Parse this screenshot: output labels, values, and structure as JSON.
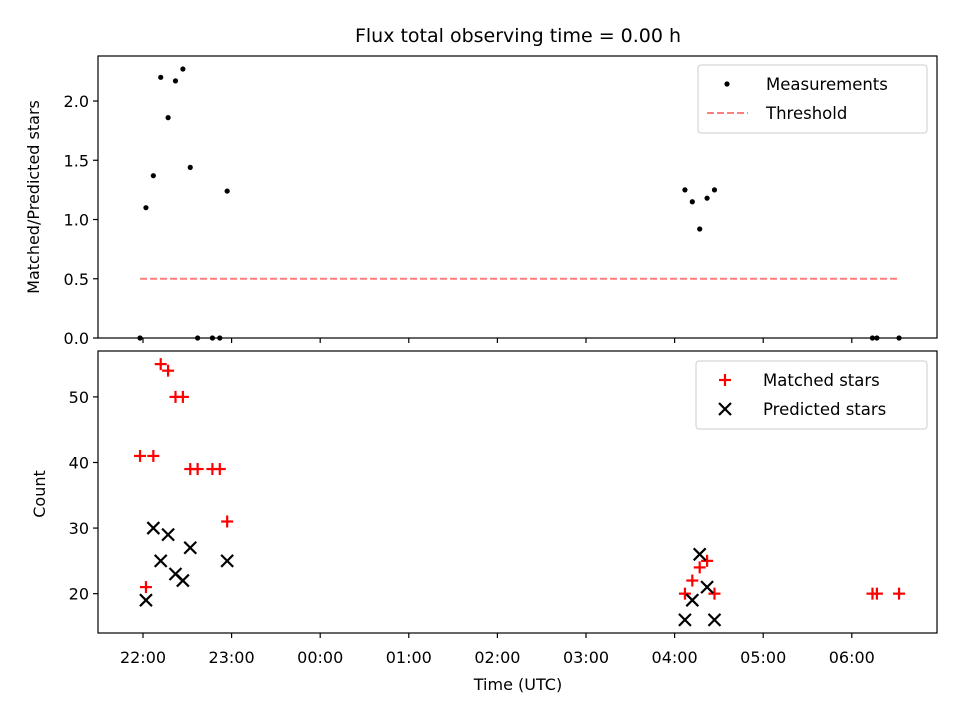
{
  "chart_data": [
    {
      "type": "scatter",
      "title": "Flux total observing time = 0.00 h",
      "xlabel": "",
      "ylabel": "Matched/Predicted stars",
      "ylim": [
        0,
        2.38
      ],
      "yticks": [
        "0.0",
        "0.5",
        "1.0",
        "1.5",
        "2.0"
      ],
      "legend_position": "top-right",
      "series": [
        {
          "name": "Measurements",
          "marker": "dot",
          "color": "#000000",
          "points": [
            [
              "21:58",
              0.0
            ],
            [
              "22:02",
              1.1
            ],
            [
              "22:07",
              1.37
            ],
            [
              "22:12",
              2.2
            ],
            [
              "22:17",
              1.86
            ],
            [
              "22:22",
              2.17
            ],
            [
              "22:27",
              2.27
            ],
            [
              "22:32",
              1.44
            ],
            [
              "22:37",
              0.0
            ],
            [
              "22:47",
              0.0
            ],
            [
              "22:52",
              0.0
            ],
            [
              "22:57",
              1.24
            ],
            [
              "04:07",
              1.25
            ],
            [
              "04:12",
              1.15
            ],
            [
              "04:17",
              0.92
            ],
            [
              "04:22",
              1.18
            ],
            [
              "04:27",
              1.25
            ],
            [
              "06:14",
              0.0
            ],
            [
              "06:17",
              0.0
            ],
            [
              "06:32",
              0.0
            ]
          ]
        },
        {
          "name": "Threshold",
          "marker": "dashed-line",
          "color": "#ff7f7f",
          "points": [
            [
              "21:58",
              0.5
            ],
            [
              "06:32",
              0.5
            ]
          ]
        }
      ]
    },
    {
      "type": "scatter",
      "title": "",
      "xlabel": "Time (UTC)",
      "ylabel": "Count",
      "ylim": [
        14,
        57
      ],
      "yticks": [
        "20",
        "30",
        "40",
        "50"
      ],
      "xticks": [
        "22:00",
        "23:00",
        "00:00",
        "01:00",
        "02:00",
        "03:00",
        "04:00",
        "05:00",
        "06:00"
      ],
      "legend_position": "top-right",
      "series": [
        {
          "name": "Matched stars",
          "marker": "plus",
          "color": "#ff0000",
          "points": [
            [
              "21:58",
              41
            ],
            [
              "22:02",
              21
            ],
            [
              "22:07",
              41
            ],
            [
              "22:12",
              55
            ],
            [
              "22:17",
              54
            ],
            [
              "22:22",
              50
            ],
            [
              "22:27",
              50
            ],
            [
              "22:32",
              39
            ],
            [
              "22:37",
              39
            ],
            [
              "22:47",
              39
            ],
            [
              "22:52",
              39
            ],
            [
              "22:57",
              31
            ],
            [
              "04:07",
              20
            ],
            [
              "04:12",
              22
            ],
            [
              "04:17",
              24
            ],
            [
              "04:22",
              25
            ],
            [
              "04:27",
              20
            ],
            [
              "06:14",
              20
            ],
            [
              "06:17",
              20
            ],
            [
              "06:32",
              20
            ]
          ]
        },
        {
          "name": "Predicted stars",
          "marker": "x",
          "color": "#000000",
          "points": [
            [
              "22:02",
              19
            ],
            [
              "22:07",
              30
            ],
            [
              "22:12",
              25
            ],
            [
              "22:17",
              29
            ],
            [
              "22:22",
              23
            ],
            [
              "22:27",
              22
            ],
            [
              "22:32",
              27
            ],
            [
              "22:57",
              25
            ],
            [
              "04:07",
              16
            ],
            [
              "04:12",
              19
            ],
            [
              "04:17",
              26
            ],
            [
              "04:22",
              21
            ],
            [
              "04:27",
              16
            ]
          ]
        }
      ]
    }
  ]
}
